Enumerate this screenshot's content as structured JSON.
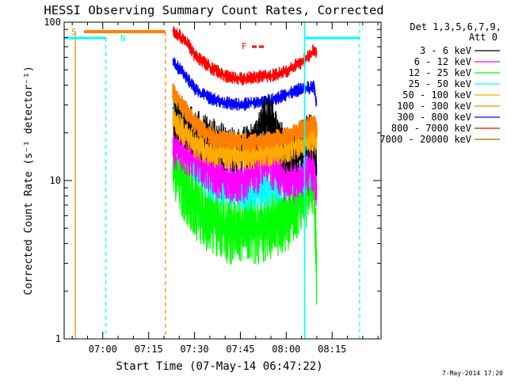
{
  "chart_data": {
    "type": "line",
    "title": "HESSI Observing Summary Count Rates, Corrected",
    "xlabel": "Start Time (07-May-14 06:47:22)",
    "ylabel": "Corrected Count Rate (s⁻¹ detector⁻¹)",
    "x_range": [
      "06:47:22",
      "08:31:00"
    ],
    "y_range": [
      1,
      100
    ],
    "y_scale": "log",
    "x_ticks": [
      "07:00",
      "07:15",
      "07:30",
      "07:45",
      "08:00",
      "08:15"
    ],
    "y_ticks": [
      "1",
      "10",
      "100"
    ],
    "legend_placement": "top-right, outside plot",
    "legend_header": [
      "Det 1,3,5,6,7,9,",
      "Att 0"
    ],
    "series": [
      {
        "name": "3 - 6 keV",
        "color": "#000000",
        "x": [
          "07:23",
          "07:30",
          "07:35",
          "07:40",
          "07:45",
          "07:50",
          "07:53",
          "07:56",
          "08:00",
          "08:03",
          "08:06",
          "08:09",
          "08:10"
        ],
        "values": [
          26,
          20,
          18,
          16,
          15,
          17,
          26,
          22,
          15,
          15,
          18,
          19,
          12
        ]
      },
      {
        "name": "6 - 12 keV",
        "color": "#ff00ff",
        "x": [
          "07:23",
          "07:30",
          "07:35",
          "07:40",
          "07:45",
          "07:50",
          "07:53",
          "07:56",
          "08:00",
          "08:03",
          "08:06",
          "08:09",
          "08:10"
        ],
        "values": [
          17,
          14,
          12,
          10,
          10,
          11,
          14,
          12,
          10,
          10,
          11,
          12,
          9
        ]
      },
      {
        "name": "12 - 25 keV",
        "color": "#00ff00",
        "x": [
          "07:23",
          "07:27",
          "07:30",
          "07:35",
          "07:40",
          "07:45",
          "07:50",
          "07:55",
          "08:00",
          "08:05",
          "08:09",
          "08:10"
        ],
        "values": [
          14,
          9,
          7,
          6,
          5,
          5,
          5,
          5.5,
          6,
          8,
          10,
          2.2
        ]
      },
      {
        "name": "25 - 50 keV",
        "color": "#00ffff",
        "x": [
          "07:23",
          "07:30",
          "07:35",
          "07:40",
          "07:45",
          "07:50",
          "07:55",
          "08:00",
          "08:05",
          "08:09",
          "08:10"
        ],
        "values": [
          29,
          13,
          10,
          9,
          8.5,
          8.5,
          9,
          10,
          11,
          12,
          10
        ]
      },
      {
        "name": "50 - 100 keV",
        "color": "#ffaa00",
        "x": [
          "07:23",
          "07:30",
          "07:35",
          "07:40",
          "07:45",
          "07:50",
          "07:55",
          "08:00",
          "08:05",
          "08:09",
          "08:10"
        ],
        "values": [
          24,
          17,
          15,
          14.5,
          14.5,
          14.5,
          15,
          16,
          17,
          19,
          17
        ]
      },
      {
        "name": "100 - 300 keV",
        "color": "#ff8000",
        "x": [
          "07:23",
          "07:30",
          "07:35",
          "07:40",
          "07:45",
          "07:50",
          "07:55",
          "08:00",
          "08:05",
          "08:09",
          "08:10"
        ],
        "values": [
          36,
          23,
          19,
          18,
          17.5,
          17.5,
          18,
          19,
          21,
          23,
          21
        ]
      },
      {
        "name": "300 - 800 keV",
        "color": "#0000ff",
        "x": [
          "07:23",
          "07:27",
          "07:30",
          "07:35",
          "07:40",
          "07:45",
          "07:50",
          "07:55",
          "08:00",
          "08:05",
          "08:09",
          "08:10"
        ],
        "values": [
          56,
          46,
          38,
          33,
          31,
          30,
          31,
          32,
          35,
          38,
          39,
          30
        ]
      },
      {
        "name": "800 - 7000 keV",
        "color": "#ff0000",
        "x": [
          "07:23",
          "07:27",
          "07:30",
          "07:35",
          "07:40",
          "07:45",
          "07:50",
          "07:55",
          "08:00",
          "08:05",
          "08:09",
          "08:10"
        ],
        "values": [
          88,
          77,
          62,
          52,
          46,
          44,
          45,
          46,
          49,
          56,
          66,
          62
        ]
      },
      {
        "name": "7000 - 20000 keV",
        "color": "#808000",
        "x": [],
        "values": []
      }
    ],
    "annotations": {
      "S": {
        "label": "S",
        "color": "#ff8000",
        "start": "06:47:22",
        "end": "07:20:30"
      },
      "N": {
        "label": "N",
        "color": "#00ffff"
      },
      "F": {
        "label": "F",
        "color": "#ff0000"
      }
    },
    "footer_date": "7-May-2014 17:20"
  }
}
